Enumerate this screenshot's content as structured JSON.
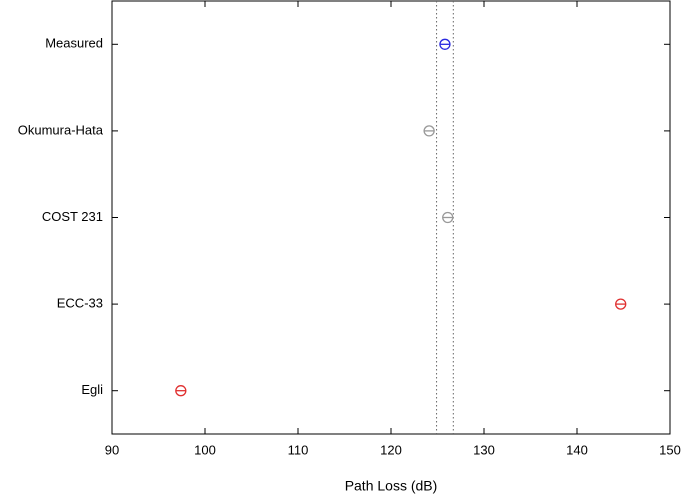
{
  "chart_data": {
    "type": "dot",
    "x_label": "Path Loss (dB)",
    "categories": [
      "Measured",
      "Okumura-Hata",
      "COST 231",
      "ECC-33",
      "Egli"
    ],
    "values": [
      125.8,
      124.1,
      126.1,
      144.7,
      97.4
    ],
    "colors": [
      "#2a2ae0",
      "#999999",
      "#999999",
      "#e03030",
      "#e03030"
    ],
    "reference_lines": [
      124.9,
      126.7
    ],
    "xlim": [
      90,
      150
    ],
    "xticks": [
      90,
      100,
      110,
      120,
      130,
      140,
      150
    ]
  }
}
